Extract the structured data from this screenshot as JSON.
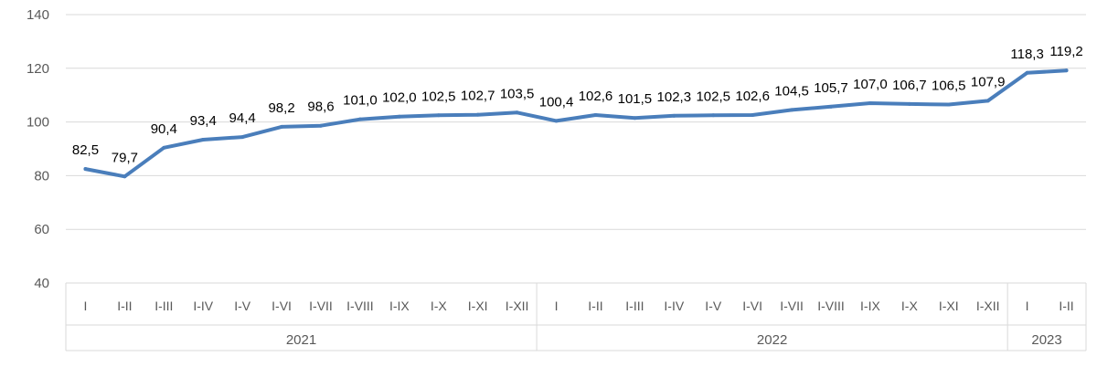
{
  "chart_data": {
    "type": "line",
    "title": "",
    "xlabel": "",
    "ylabel": "",
    "ylim": [
      40,
      140
    ],
    "yticks": [
      40,
      60,
      80,
      100,
      120,
      140
    ],
    "grid": true,
    "legend": "none",
    "line_color": "#4a7ebb",
    "grid_color": "#d9d9d9",
    "categories": [
      "I",
      "I-II",
      "I-III",
      "I-IV",
      "I-V",
      "I-VI",
      "I-VII",
      "I-VIII",
      "I-IX",
      "I-X",
      "I-XI",
      "I-XII",
      "I",
      "I-II",
      "I-III",
      "I-IV",
      "I-V",
      "I-VI",
      "I-VII",
      "I-VIII",
      "I-IX",
      "I-X",
      "I-XI",
      "I-XII",
      "I",
      "I-II"
    ],
    "groups": [
      {
        "label": "2021",
        "count": 12
      },
      {
        "label": "2022",
        "count": 12
      },
      {
        "label": "2023",
        "count": 2
      }
    ],
    "series": [
      {
        "values": [
          82.5,
          79.7,
          90.4,
          93.4,
          94.4,
          98.2,
          98.6,
          101.0,
          102.0,
          102.5,
          102.7,
          103.5,
          100.4,
          102.6,
          101.5,
          102.3,
          102.5,
          102.6,
          104.5,
          105.7,
          107.0,
          106.7,
          106.5,
          107.9,
          118.3,
          119.2
        ],
        "labels": [
          "82,5",
          "79,7",
          "90,4",
          "93,4",
          "94,4",
          "98,2",
          "98,6",
          "101,0",
          "102,0",
          "102,5",
          "102,7",
          "103,5",
          "100,4",
          "102,6",
          "101,5",
          "102,3",
          "102,5",
          "102,6",
          "104,5",
          "105,7",
          "107,0",
          "106,7",
          "106,5",
          "107,9",
          "118,3",
          "119,2"
        ]
      }
    ]
  }
}
